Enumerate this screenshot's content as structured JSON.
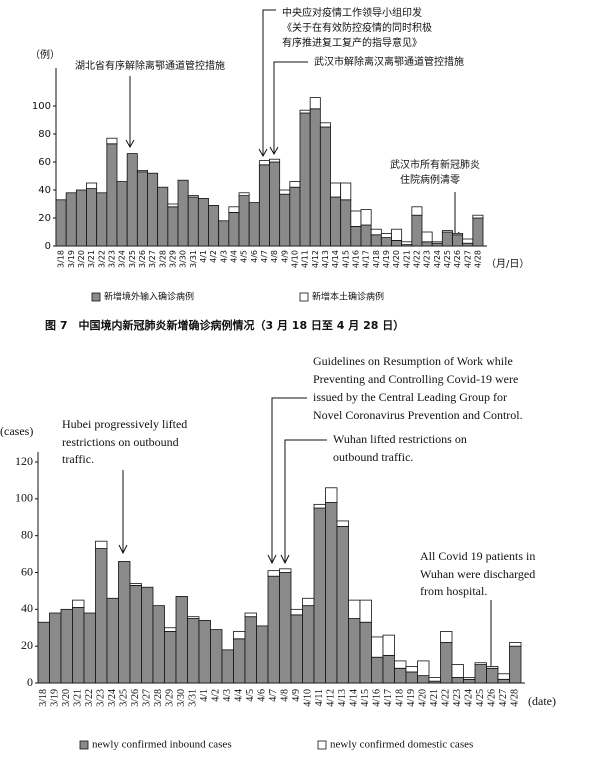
{
  "chart_data": [
    {
      "type": "bar",
      "stacked": true,
      "grid": false,
      "caption": "图 7　中国境内新冠肺炎新增确诊病例情况（3 月 18 日至 4 月 28 日）",
      "y_label": "（例）",
      "x_label": "（月/日）",
      "annotations": [
        {
          "lines": [
            "湖北省有序解除离鄂通道管控措施"
          ]
        },
        {
          "lines": [
            "中央应对疫情工作领导小组印发",
            "《关于在有效防控疫情的同时积极",
            "有序推进复工复产的指导意见》"
          ]
        },
        {
          "lines": [
            "武汉市解除离汉离鄂通道管控措施"
          ]
        },
        {
          "lines": [
            "武汉市所有新冠肺炎",
            "住院病例清零"
          ]
        }
      ],
      "categories": [
        "3/18",
        "3/19",
        "3/20",
        "3/21",
        "3/22",
        "3/23",
        "3/24",
        "3/25",
        "3/26",
        "3/27",
        "3/28",
        "3/29",
        "3/30",
        "3/31",
        "4/1",
        "4/2",
        "4/3",
        "4/4",
        "4/5",
        "4/6",
        "4/7",
        "4/8",
        "4/9",
        "4/10",
        "4/11",
        "4/12",
        "4/13",
        "4/14",
        "4/15",
        "4/16",
        "4/17",
        "4/18",
        "4/19",
        "4/20",
        "4/21",
        "4/22",
        "4/23",
        "4/24",
        "4/25",
        "4/26",
        "4/27",
        "4/28"
      ],
      "series": [
        {
          "name": "新增境外输入确诊病例",
          "color": "#8a8a8a",
          "values": [
            33,
            38,
            40,
            41,
            38,
            73,
            46,
            66,
            53,
            52,
            42,
            28,
            47,
            35,
            34,
            29,
            18,
            24,
            36,
            31,
            58,
            60,
            37,
            42,
            95,
            98,
            85,
            35,
            33,
            14,
            15,
            8,
            6,
            4,
            1,
            22,
            3,
            2,
            10,
            8,
            2,
            20
          ]
        },
        {
          "name": "新增本土确诊病例",
          "color": "#ffffff",
          "values": [
            0,
            0,
            0,
            4,
            0,
            4,
            0,
            0,
            1,
            0,
            0,
            2,
            0,
            1,
            0,
            0,
            0,
            4,
            2,
            0,
            3,
            2,
            3,
            4,
            2,
            8,
            3,
            10,
            12,
            11,
            11,
            4,
            3,
            8,
            2,
            6,
            7,
            1,
            1,
            1,
            3,
            2
          ]
        }
      ],
      "ylim": [
        0,
        120
      ],
      "yticks": [
        0,
        20,
        40,
        60,
        80,
        100
      ]
    },
    {
      "type": "bar",
      "stacked": true,
      "grid": false,
      "y_label": "(cases)",
      "x_label": "(date)",
      "annotations": [
        {
          "lines": [
            "Hubei progressively lifted",
            "restrictions on outbound",
            "traffic."
          ]
        },
        {
          "lines": [
            "Guidelines on Resumption of Work while",
            "Preventing and Controlling Covid-19 were",
            "issued by the Central Leading Group for",
            "Novel Coronavirus Prevention and Control."
          ]
        },
        {
          "lines": [
            "Wuhan lifted restrictions on",
            "outbound traffic."
          ]
        },
        {
          "lines": [
            "All Covid 19 patients in",
            "Wuhan were discharged",
            "from hospital."
          ]
        }
      ],
      "categories": [
        "3/18",
        "3/19",
        "3/20",
        "3/21",
        "3/22",
        "3/23",
        "3/24",
        "3/25",
        "3/26",
        "3/27",
        "3/28",
        "3/29",
        "3/30",
        "3/31",
        "4/1",
        "4/2",
        "4/3",
        "4/4",
        "4/5",
        "4/6",
        "4/7",
        "4/8",
        "4/9",
        "4/10",
        "4/11",
        "4/12",
        "4/13",
        "4/14",
        "4/15",
        "4/16",
        "4/17",
        "4/18",
        "4/19",
        "4/20",
        "4/21",
        "4/22",
        "4/23",
        "4/24",
        "4/25",
        "4/26",
        "4/27",
        "4/28"
      ],
      "series": [
        {
          "name": "newly confirmed inbound cases",
          "color": "#8a8a8a",
          "values": [
            33,
            38,
            40,
            41,
            38,
            73,
            46,
            66,
            53,
            52,
            42,
            28,
            47,
            35,
            34,
            29,
            18,
            24,
            36,
            31,
            58,
            60,
            37,
            42,
            95,
            98,
            85,
            35,
            33,
            14,
            15,
            8,
            6,
            4,
            1,
            22,
            3,
            2,
            10,
            8,
            2,
            20
          ]
        },
        {
          "name": "newly confirmed domestic cases",
          "color": "#ffffff",
          "values": [
            0,
            0,
            0,
            4,
            0,
            4,
            0,
            0,
            1,
            0,
            0,
            2,
            0,
            1,
            0,
            0,
            0,
            4,
            2,
            0,
            3,
            2,
            3,
            4,
            2,
            8,
            3,
            10,
            12,
            11,
            11,
            4,
            3,
            8,
            2,
            6,
            7,
            1,
            1,
            1,
            3,
            2
          ]
        }
      ],
      "ylim": [
        0,
        120
      ],
      "yticks": [
        0,
        20,
        40,
        60,
        80,
        100,
        120
      ]
    }
  ]
}
